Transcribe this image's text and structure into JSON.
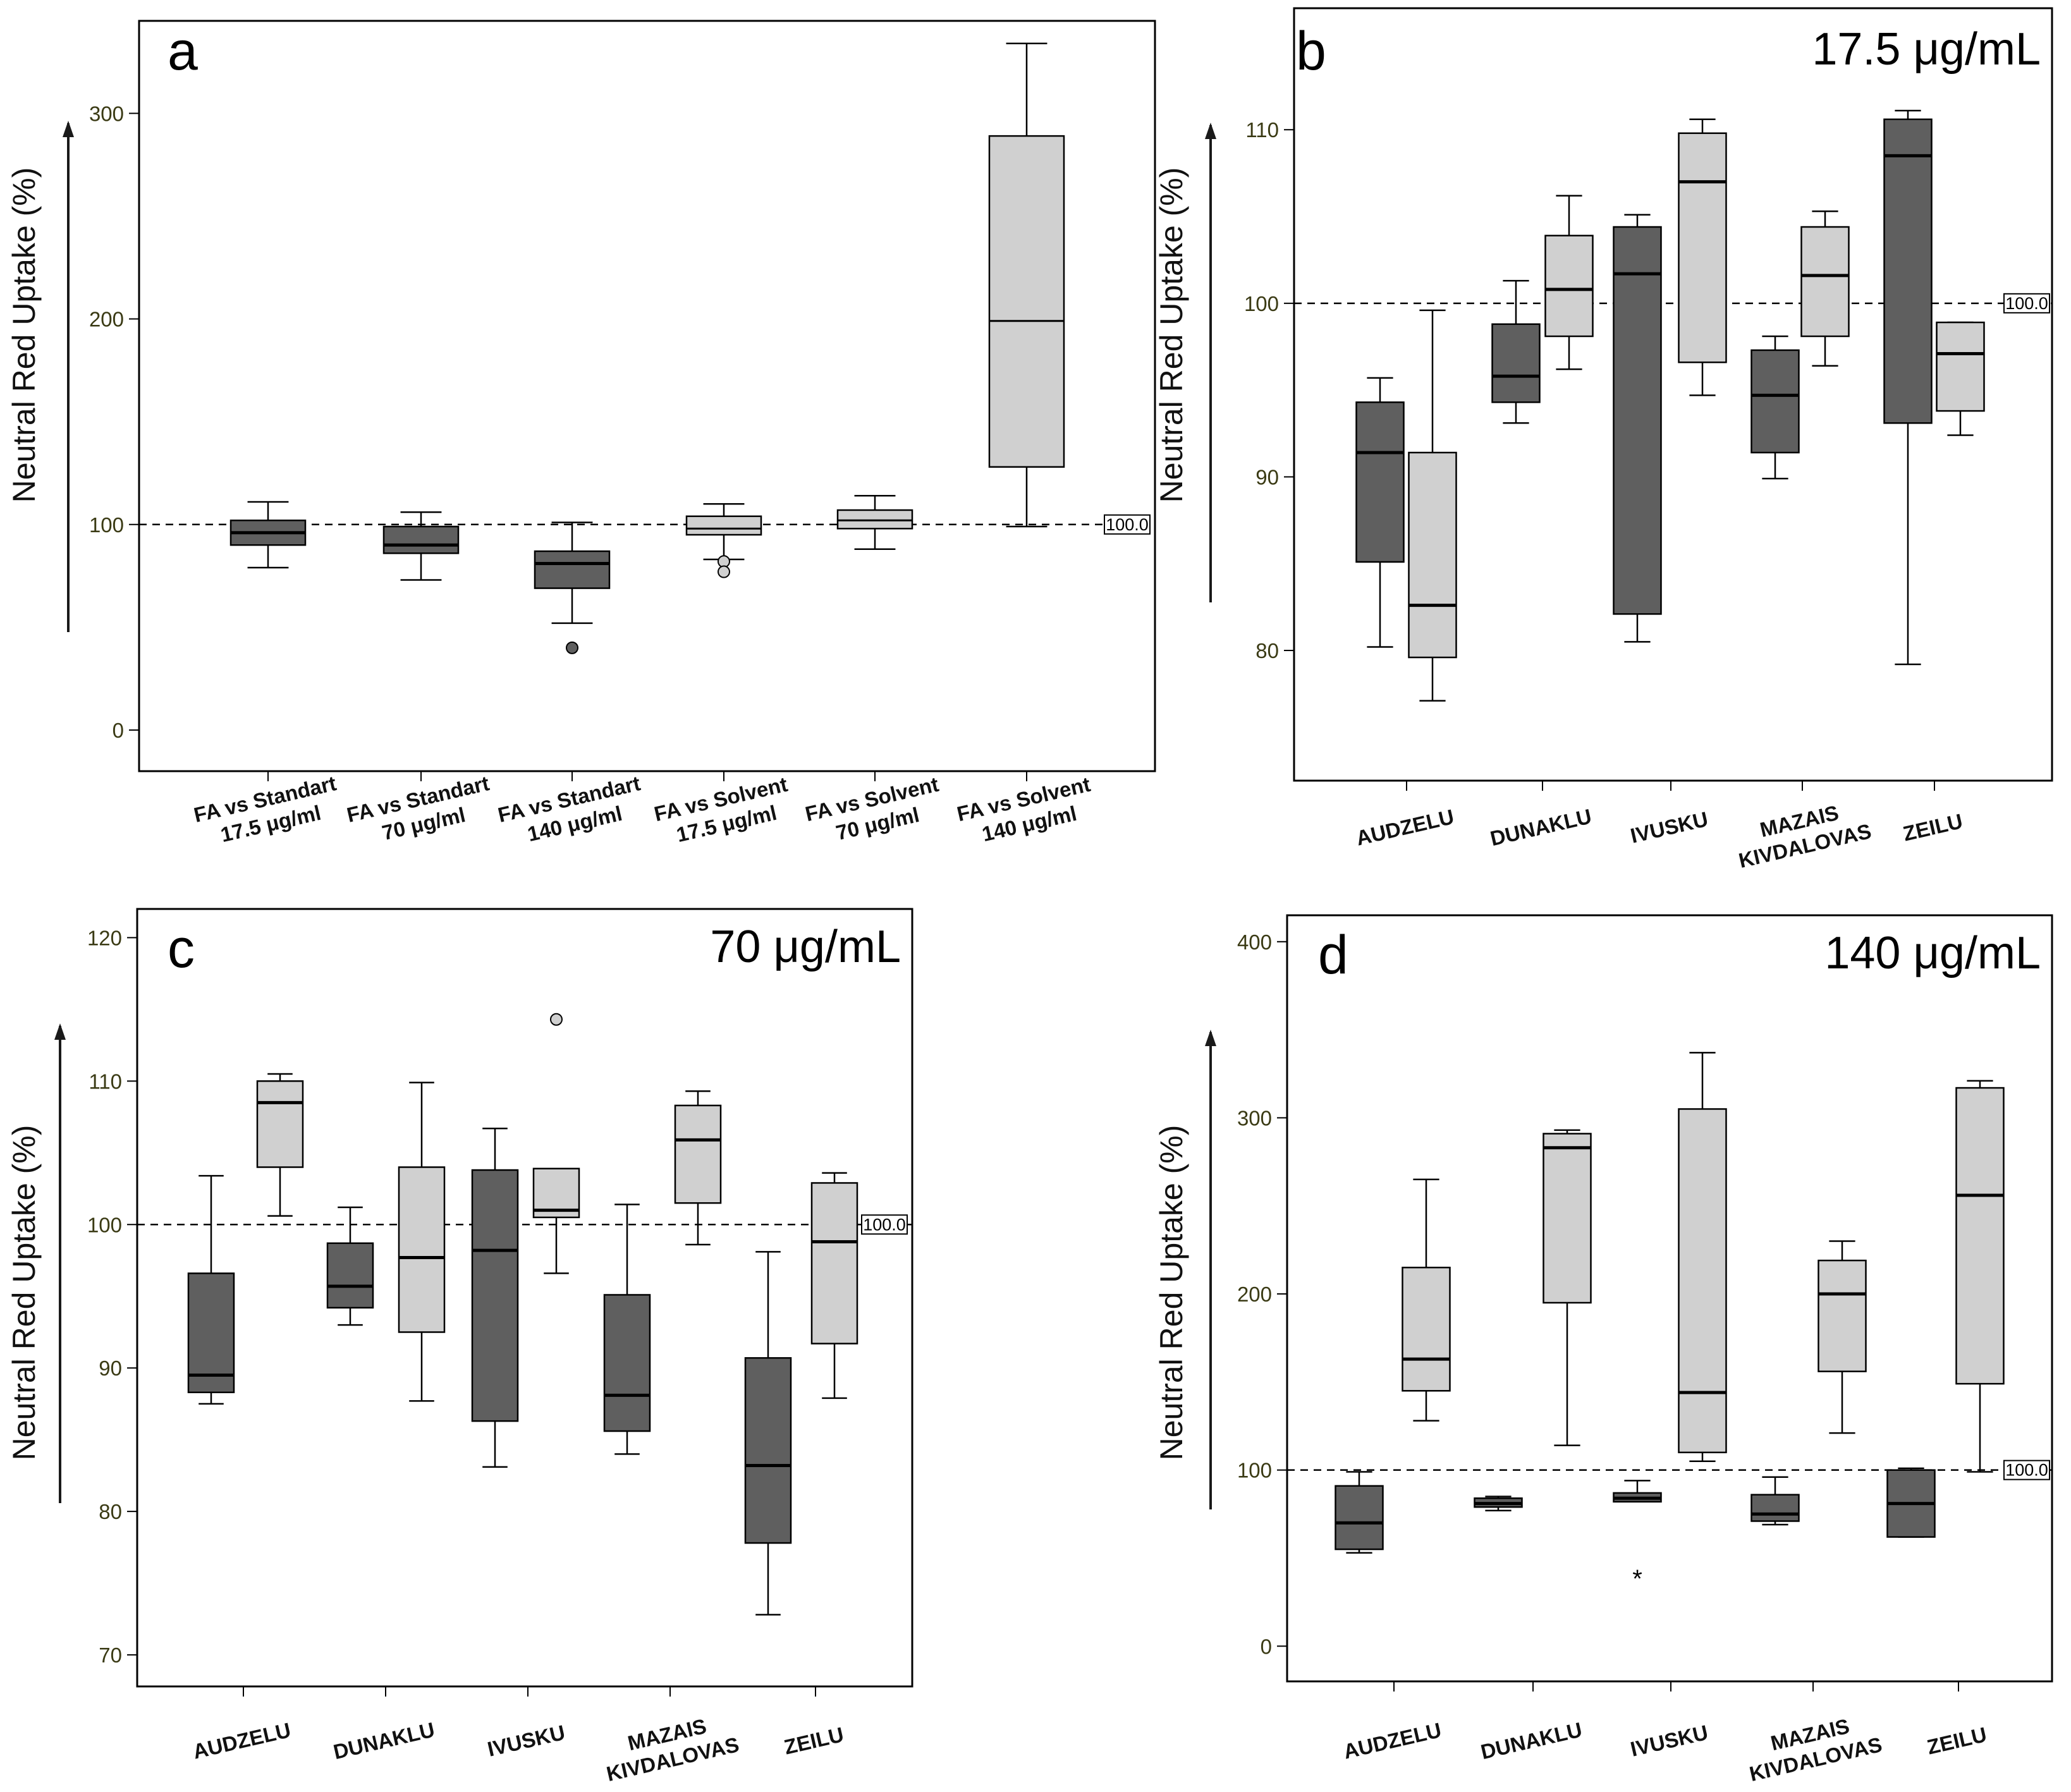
{
  "figure": {
    "y_axis_label": "Neutral Red Uptake (%)",
    "reference_value": 100.0,
    "reference_label": "100.0",
    "colors": {
      "dark_box": "#5f5f5f",
      "light_box": "#d0d0d0",
      "line": "#000000"
    }
  },
  "chart_data": [
    {
      "id": "a",
      "type": "boxplot",
      "panel_label": "a",
      "concentration_label": "",
      "ylabel": "Neutral Red Uptake (%)",
      "ylim": [
        -20,
        345
      ],
      "yticks": [
        0,
        100,
        200,
        300
      ],
      "ytick_labels": [
        "0",
        "100",
        "200",
        "300"
      ],
      "reference_line": 100.0,
      "categories": [
        [
          "FA vs Standart",
          "17.5 μg/ml"
        ],
        [
          "FA vs Standart",
          "70 μg/ml"
        ],
        [
          "FA vs Standart",
          "140 μg/ml"
        ],
        [
          "FA vs Solvent",
          "17.5 μg/ml"
        ],
        [
          "FA vs Solvent",
          "70 μg/ml"
        ],
        [
          "FA vs Solvent",
          "140 μg/ml"
        ]
      ],
      "boxes": [
        {
          "color": "dark",
          "min": 79,
          "q1": 90,
          "median": 96,
          "q3": 102,
          "max": 111,
          "outliers": [],
          "extremes": []
        },
        {
          "color": "dark",
          "min": 73,
          "q1": 86,
          "median": 90,
          "q3": 99,
          "max": 106,
          "outliers": [],
          "extremes": []
        },
        {
          "color": "dark",
          "min": 52,
          "q1": 69,
          "median": 81,
          "q3": 87,
          "max": 101,
          "outliers": [
            40
          ],
          "extremes": []
        },
        {
          "color": "light",
          "min": 83,
          "q1": 95,
          "median": 98,
          "q3": 104,
          "max": 110,
          "outliers": [
            82,
            77
          ],
          "extremes": []
        },
        {
          "color": "light",
          "min": 88,
          "q1": 98,
          "median": 102,
          "q3": 107,
          "max": 114,
          "outliers": [],
          "extremes": []
        },
        {
          "color": "light",
          "min": 99,
          "q1": 128,
          "median": 199,
          "q3": 289,
          "max": 334,
          "outliers": [],
          "extremes": []
        }
      ]
    },
    {
      "id": "b",
      "type": "boxplot",
      "panel_label": "b",
      "concentration_label": "17.5 μg/mL",
      "ylabel": "Neutral Red Uptake (%)",
      "ylim": [
        72.5,
        117
      ],
      "yticks": [
        80,
        90,
        100,
        110
      ],
      "ytick_labels": [
        "80",
        "90",
        "100",
        "110"
      ],
      "reference_line": 100.0,
      "categories": [
        [
          "AUDZELU"
        ],
        [
          "DUNAKLU"
        ],
        [
          "IVUSKU"
        ],
        [
          "MAZAIS",
          "KIVDALOVAS"
        ],
        [
          "ZEILU"
        ]
      ],
      "boxes": [
        {
          "color": "dark",
          "min": 80.2,
          "q1": 85.1,
          "median": 91.4,
          "q3": 94.3,
          "max": 95.7,
          "outliers": [],
          "extremes": []
        },
        {
          "color": "light",
          "min": 77.1,
          "q1": 79.6,
          "median": 82.6,
          "q3": 91.4,
          "max": 99.6,
          "outliers": [],
          "extremes": []
        },
        {
          "color": "dark",
          "min": 93.1,
          "q1": 94.3,
          "median": 95.8,
          "q3": 98.8,
          "max": 101.3,
          "outliers": [],
          "extremes": []
        },
        {
          "color": "light",
          "min": 96.2,
          "q1": 98.1,
          "median": 100.8,
          "q3": 103.9,
          "max": 106.2,
          "outliers": [],
          "extremes": []
        },
        {
          "color": "dark",
          "min": 80.5,
          "q1": 82.1,
          "median": 101.7,
          "q3": 104.4,
          "max": 105.1,
          "outliers": [],
          "extremes": []
        },
        {
          "color": "light",
          "min": 94.7,
          "q1": 96.6,
          "median": 107.0,
          "q3": 109.8,
          "max": 110.6,
          "outliers": [],
          "extremes": []
        },
        {
          "color": "dark",
          "min": 89.9,
          "q1": 91.4,
          "median": 94.7,
          "q3": 97.3,
          "max": 98.1,
          "outliers": [],
          "extremes": []
        },
        {
          "color": "light",
          "min": 96.4,
          "q1": 98.1,
          "median": 101.6,
          "q3": 104.4,
          "max": 105.3,
          "outliers": [],
          "extremes": []
        },
        {
          "color": "dark",
          "min": 79.2,
          "q1": 93.1,
          "median": 108.5,
          "q3": 110.6,
          "max": 111.1,
          "outliers": [],
          "extremes": []
        },
        {
          "color": "light",
          "min": 92.4,
          "q1": 93.8,
          "median": 97.1,
          "q3": 98.9,
          "max": 98.9,
          "outliers": [],
          "extremes": []
        }
      ]
    },
    {
      "id": "c",
      "type": "boxplot",
      "panel_label": "c",
      "concentration_label": "70 μg/mL",
      "ylabel": "Neutral Red Uptake (%)",
      "ylim": [
        67.8,
        122
      ],
      "yticks": [
        70,
        80,
        90,
        100,
        110,
        120
      ],
      "ytick_labels": [
        "70",
        "80",
        "90",
        "100",
        "110",
        "120"
      ],
      "reference_line": 100.0,
      "categories": [
        [
          "AUDZELU"
        ],
        [
          "DUNAKLU"
        ],
        [
          "IVUSKU"
        ],
        [
          "MAZAIS",
          "KIVDALOVAS"
        ],
        [
          "ZEILU"
        ]
      ],
      "boxes": [
        {
          "color": "dark",
          "min": 87.5,
          "q1": 88.3,
          "median": 89.5,
          "q3": 96.6,
          "max": 103.4,
          "outliers": [],
          "extremes": []
        },
        {
          "color": "light",
          "min": 100.6,
          "q1": 104.0,
          "median": 108.5,
          "q3": 110.0,
          "max": 110.5,
          "outliers": [],
          "extremes": []
        },
        {
          "color": "dark",
          "min": 93.0,
          "q1": 94.2,
          "median": 95.7,
          "q3": 98.7,
          "max": 101.2,
          "outliers": [],
          "extremes": []
        },
        {
          "color": "light",
          "min": 87.7,
          "q1": 92.5,
          "median": 97.7,
          "q3": 104.0,
          "max": 109.9,
          "outliers": [],
          "extremes": []
        },
        {
          "color": "dark",
          "min": 83.1,
          "q1": 86.3,
          "median": 98.2,
          "q3": 103.8,
          "max": 106.7,
          "outliers": [],
          "extremes": []
        },
        {
          "color": "light",
          "min": 96.6,
          "q1": 100.5,
          "median": 101.0,
          "q3": 103.9,
          "max": 103.9,
          "outliers": [
            114.3
          ],
          "extremes": []
        },
        {
          "color": "dark",
          "min": 84.0,
          "q1": 85.6,
          "median": 88.1,
          "q3": 95.1,
          "max": 101.4,
          "outliers": [],
          "extremes": []
        },
        {
          "color": "light",
          "min": 98.6,
          "q1": 101.5,
          "median": 105.9,
          "q3": 108.3,
          "max": 109.3,
          "outliers": [],
          "extremes": []
        },
        {
          "color": "dark",
          "min": 72.8,
          "q1": 77.8,
          "median": 83.2,
          "q3": 90.7,
          "max": 98.1,
          "outliers": [],
          "extremes": []
        },
        {
          "color": "light",
          "min": 87.9,
          "q1": 91.7,
          "median": 98.8,
          "q3": 102.9,
          "max": 103.6,
          "outliers": [],
          "extremes": []
        }
      ]
    },
    {
      "id": "d",
      "type": "boxplot",
      "panel_label": "d",
      "concentration_label": "140 μg/mL",
      "ylabel": "Neutral Red Uptake (%)",
      "ylim": [
        -20,
        415
      ],
      "yticks": [
        0,
        100,
        200,
        300,
        400
      ],
      "ytick_labels": [
        "0",
        "100",
        "200",
        "300",
        "400"
      ],
      "reference_line": 100.0,
      "categories": [
        [
          "AUDZELU"
        ],
        [
          "DUNAKLU"
        ],
        [
          "IVUSKU"
        ],
        [
          "MAZAIS",
          "KIVDALOVAS"
        ],
        [
          "ZEILU"
        ]
      ],
      "boxes": [
        {
          "color": "dark",
          "min": 53,
          "q1": 55,
          "median": 70,
          "q3": 91,
          "max": 99,
          "outliers": [],
          "extremes": []
        },
        {
          "color": "light",
          "min": 128,
          "q1": 145,
          "median": 163,
          "q3": 215,
          "max": 265,
          "outliers": [],
          "extremes": []
        },
        {
          "color": "dark",
          "min": 77,
          "q1": 79,
          "median": 81,
          "q3": 84,
          "max": 85,
          "outliers": [],
          "extremes": []
        },
        {
          "color": "light",
          "min": 114,
          "q1": 195,
          "median": 283,
          "q3": 291,
          "max": 293,
          "outliers": [],
          "extremes": []
        },
        {
          "color": "dark",
          "min": 82,
          "q1": 82,
          "median": 84,
          "q3": 87,
          "max": 94,
          "outliers": [],
          "extremes": [
            40
          ]
        },
        {
          "color": "light",
          "min": 105,
          "q1": 110,
          "median": 144,
          "q3": 305,
          "max": 337,
          "outliers": [],
          "extremes": []
        },
        {
          "color": "dark",
          "min": 69,
          "q1": 71,
          "median": 75,
          "q3": 86,
          "max": 96,
          "outliers": [],
          "extremes": []
        },
        {
          "color": "light",
          "min": 121,
          "q1": 156,
          "median": 200,
          "q3": 219,
          "max": 230,
          "outliers": [],
          "extremes": []
        },
        {
          "color": "dark",
          "min": 62,
          "q1": 62,
          "median": 81,
          "q3": 100,
          "max": 101,
          "outliers": [],
          "extremes": []
        },
        {
          "color": "light",
          "min": 99,
          "q1": 149,
          "median": 256,
          "q3": 317,
          "max": 321,
          "outliers": [],
          "extremes": []
        }
      ]
    }
  ]
}
